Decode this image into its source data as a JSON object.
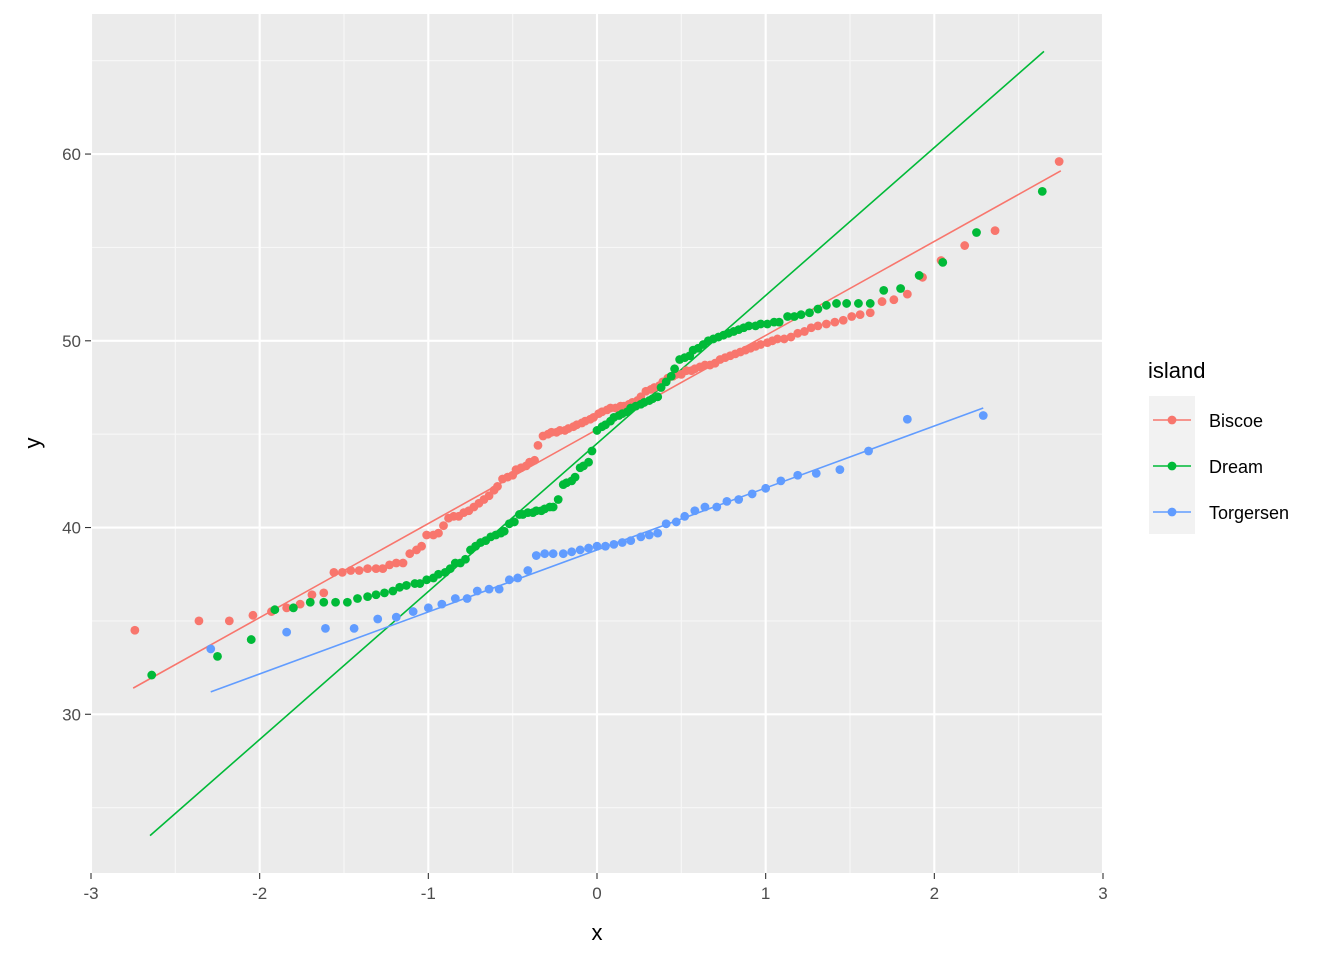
{
  "chart_data": {
    "type": "scatter",
    "title": "",
    "xlabel": "x",
    "ylabel": "y",
    "xlim": [
      -3,
      3
    ],
    "ylim": [
      21.5,
      67.5
    ],
    "x_ticks": [
      -3,
      -2,
      -1,
      0,
      1,
      2,
      3
    ],
    "y_ticks": [
      30,
      40,
      50,
      60
    ],
    "x_tick_labels": [
      "-3",
      "-2",
      "-1",
      "0",
      "1",
      "2",
      "3"
    ],
    "y_tick_labels": [
      "30",
      "40",
      "50",
      "60"
    ],
    "grid": true,
    "legend": {
      "title": "island",
      "position": "right"
    },
    "series": [
      {
        "name": "Biscoe",
        "color": "#F8766D",
        "line": [
          [
            -2.75,
            31.4
          ],
          [
            2.75,
            59.1
          ]
        ],
        "points": [
          [
            -2.74,
            34.5
          ],
          [
            -2.36,
            35.0
          ],
          [
            -2.18,
            35.0
          ],
          [
            -2.04,
            35.3
          ],
          [
            -1.93,
            35.5
          ],
          [
            -1.84,
            35.7
          ],
          [
            -1.76,
            35.9
          ],
          [
            -1.69,
            36.4
          ],
          [
            -1.62,
            36.5
          ],
          [
            -1.56,
            37.6
          ],
          [
            -1.51,
            37.6
          ],
          [
            -1.46,
            37.7
          ],
          [
            -1.41,
            37.7
          ],
          [
            -1.36,
            37.8
          ],
          [
            -1.31,
            37.8
          ],
          [
            -1.27,
            37.8
          ],
          [
            -1.23,
            38.0
          ],
          [
            -1.19,
            38.1
          ],
          [
            -1.15,
            38.1
          ],
          [
            -1.11,
            38.6
          ],
          [
            -1.07,
            38.8
          ],
          [
            -1.04,
            39.0
          ],
          [
            -1.01,
            39.6
          ],
          [
            -0.97,
            39.6
          ],
          [
            -0.94,
            39.7
          ],
          [
            -0.91,
            40.1
          ],
          [
            -0.88,
            40.5
          ],
          [
            -0.85,
            40.6
          ],
          [
            -0.82,
            40.6
          ],
          [
            -0.79,
            40.8
          ],
          [
            -0.76,
            40.9
          ],
          [
            -0.73,
            41.1
          ],
          [
            -0.7,
            41.3
          ],
          [
            -0.67,
            41.5
          ],
          [
            -0.64,
            41.7
          ],
          [
            -0.61,
            42.0
          ],
          [
            -0.59,
            42.2
          ],
          [
            -0.56,
            42.6
          ],
          [
            -0.53,
            42.7
          ],
          [
            -0.5,
            42.8
          ],
          [
            -0.48,
            43.1
          ],
          [
            -0.45,
            43.2
          ],
          [
            -0.42,
            43.3
          ],
          [
            -0.4,
            43.5
          ],
          [
            -0.37,
            43.6
          ],
          [
            -0.35,
            44.4
          ],
          [
            -0.32,
            44.9
          ],
          [
            -0.29,
            45.0
          ],
          [
            -0.27,
            45.1
          ],
          [
            -0.24,
            45.1
          ],
          [
            -0.22,
            45.2
          ],
          [
            -0.19,
            45.2
          ],
          [
            -0.17,
            45.3
          ],
          [
            -0.14,
            45.4
          ],
          [
            -0.12,
            45.5
          ],
          [
            -0.09,
            45.6
          ],
          [
            -0.07,
            45.7
          ],
          [
            -0.04,
            45.8
          ],
          [
            -0.02,
            45.9
          ],
          [
            0.01,
            46.1
          ],
          [
            0.03,
            46.2
          ],
          [
            0.06,
            46.3
          ],
          [
            0.08,
            46.4
          ],
          [
            0.11,
            46.4
          ],
          [
            0.14,
            46.5
          ],
          [
            0.16,
            46.5
          ],
          [
            0.19,
            46.6
          ],
          [
            0.21,
            46.7
          ],
          [
            0.24,
            46.8
          ],
          [
            0.26,
            47.0
          ],
          [
            0.29,
            47.3
          ],
          [
            0.32,
            47.4
          ],
          [
            0.34,
            47.5
          ],
          [
            0.37,
            47.6
          ],
          [
            0.39,
            47.8
          ],
          [
            0.42,
            48.0
          ],
          [
            0.45,
            48.1
          ],
          [
            0.47,
            48.2
          ],
          [
            0.5,
            48.2
          ],
          [
            0.53,
            48.4
          ],
          [
            0.56,
            48.4
          ],
          [
            0.58,
            48.5
          ],
          [
            0.61,
            48.6
          ],
          [
            0.64,
            48.7
          ],
          [
            0.67,
            48.7
          ],
          [
            0.7,
            48.8
          ],
          [
            0.73,
            49.0
          ],
          [
            0.76,
            49.1
          ],
          [
            0.79,
            49.2
          ],
          [
            0.82,
            49.3
          ],
          [
            0.85,
            49.4
          ],
          [
            0.88,
            49.5
          ],
          [
            0.91,
            49.6
          ],
          [
            0.94,
            49.7
          ],
          [
            0.97,
            49.8
          ],
          [
            1.01,
            49.9
          ],
          [
            1.04,
            50.0
          ],
          [
            1.07,
            50.1
          ],
          [
            1.11,
            50.1
          ],
          [
            1.15,
            50.2
          ],
          [
            1.19,
            50.4
          ],
          [
            1.23,
            50.5
          ],
          [
            1.27,
            50.7
          ],
          [
            1.31,
            50.8
          ],
          [
            1.36,
            50.9
          ],
          [
            1.41,
            51.0
          ],
          [
            1.46,
            51.1
          ],
          [
            1.51,
            51.3
          ],
          [
            1.56,
            51.4
          ],
          [
            1.62,
            51.5
          ],
          [
            1.69,
            52.1
          ],
          [
            1.76,
            52.2
          ],
          [
            1.84,
            52.5
          ],
          [
            1.93,
            53.4
          ],
          [
            2.04,
            54.3
          ],
          [
            2.18,
            55.1
          ],
          [
            2.36,
            55.9
          ],
          [
            2.74,
            59.6
          ]
        ]
      },
      {
        "name": "Dream",
        "color": "#00BA38",
        "line": [
          [
            -2.65,
            23.5
          ],
          [
            2.65,
            65.5
          ]
        ],
        "points": [
          [
            -2.64,
            32.1
          ],
          [
            -2.25,
            33.1
          ],
          [
            -2.05,
            34.0
          ],
          [
            -1.91,
            35.6
          ],
          [
            -1.8,
            35.7
          ],
          [
            -1.7,
            36.0
          ],
          [
            -1.62,
            36.0
          ],
          [
            -1.55,
            36.0
          ],
          [
            -1.48,
            36.0
          ],
          [
            -1.42,
            36.2
          ],
          [
            -1.36,
            36.3
          ],
          [
            -1.31,
            36.4
          ],
          [
            -1.26,
            36.5
          ],
          [
            -1.21,
            36.6
          ],
          [
            -1.17,
            36.8
          ],
          [
            -1.13,
            36.9
          ],
          [
            -1.08,
            37.0
          ],
          [
            -1.05,
            37.0
          ],
          [
            -1.01,
            37.2
          ],
          [
            -0.97,
            37.3
          ],
          [
            -0.94,
            37.5
          ],
          [
            -0.9,
            37.6
          ],
          [
            -0.87,
            37.8
          ],
          [
            -0.84,
            38.1
          ],
          [
            -0.81,
            38.1
          ],
          [
            -0.78,
            38.3
          ],
          [
            -0.75,
            38.8
          ],
          [
            -0.72,
            39.0
          ],
          [
            -0.69,
            39.2
          ],
          [
            -0.66,
            39.3
          ],
          [
            -0.63,
            39.5
          ],
          [
            -0.6,
            39.6
          ],
          [
            -0.57,
            39.7
          ],
          [
            -0.55,
            39.8
          ],
          [
            -0.52,
            40.2
          ],
          [
            -0.49,
            40.3
          ],
          [
            -0.46,
            40.7
          ],
          [
            -0.44,
            40.7
          ],
          [
            -0.41,
            40.8
          ],
          [
            -0.38,
            40.8
          ],
          [
            -0.36,
            40.9
          ],
          [
            -0.33,
            40.9
          ],
          [
            -0.31,
            41.0
          ],
          [
            -0.28,
            41.1
          ],
          [
            -0.26,
            41.1
          ],
          [
            -0.23,
            41.5
          ],
          [
            -0.2,
            42.3
          ],
          [
            -0.18,
            42.4
          ],
          [
            -0.15,
            42.5
          ],
          [
            -0.13,
            42.7
          ],
          [
            -0.1,
            43.2
          ],
          [
            -0.08,
            43.3
          ],
          [
            -0.05,
            43.5
          ],
          [
            -0.03,
            44.1
          ],
          [
            0.0,
            45.2
          ],
          [
            0.03,
            45.4
          ],
          [
            0.05,
            45.5
          ],
          [
            0.08,
            45.7
          ],
          [
            0.1,
            45.9
          ],
          [
            0.13,
            46.0
          ],
          [
            0.15,
            46.1
          ],
          [
            0.18,
            46.2
          ],
          [
            0.2,
            46.4
          ],
          [
            0.23,
            46.5
          ],
          [
            0.26,
            46.6
          ],
          [
            0.28,
            46.7
          ],
          [
            0.31,
            46.8
          ],
          [
            0.33,
            46.9
          ],
          [
            0.36,
            47.0
          ],
          [
            0.38,
            47.5
          ],
          [
            0.41,
            47.8
          ],
          [
            0.44,
            48.1
          ],
          [
            0.46,
            48.5
          ],
          [
            0.49,
            49.0
          ],
          [
            0.52,
            49.1
          ],
          [
            0.55,
            49.2
          ],
          [
            0.57,
            49.5
          ],
          [
            0.6,
            49.6
          ],
          [
            0.63,
            49.8
          ],
          [
            0.66,
            50.0
          ],
          [
            0.69,
            50.1
          ],
          [
            0.72,
            50.2
          ],
          [
            0.75,
            50.3
          ],
          [
            0.78,
            50.4
          ],
          [
            0.81,
            50.5
          ],
          [
            0.84,
            50.6
          ],
          [
            0.87,
            50.7
          ],
          [
            0.9,
            50.8
          ],
          [
            0.94,
            50.8
          ],
          [
            0.97,
            50.9
          ],
          [
            1.01,
            50.9
          ],
          [
            1.05,
            51.0
          ],
          [
            1.08,
            51.0
          ],
          [
            1.13,
            51.3
          ],
          [
            1.17,
            51.3
          ],
          [
            1.21,
            51.4
          ],
          [
            1.26,
            51.5
          ],
          [
            1.31,
            51.7
          ],
          [
            1.36,
            51.9
          ],
          [
            1.42,
            52.0
          ],
          [
            1.48,
            52.0
          ],
          [
            1.55,
            52.0
          ],
          [
            1.62,
            52.0
          ],
          [
            1.7,
            52.7
          ],
          [
            1.8,
            52.8
          ],
          [
            1.91,
            53.5
          ],
          [
            2.05,
            54.2
          ],
          [
            2.25,
            55.8
          ],
          [
            2.64,
            58.0
          ]
        ]
      },
      {
        "name": "Torgersen",
        "color": "#619CFF",
        "line": [
          [
            -2.29,
            31.2
          ],
          [
            2.29,
            46.4
          ]
        ],
        "points": [
          [
            -2.29,
            33.5
          ],
          [
            -1.84,
            34.4
          ],
          [
            -1.61,
            34.6
          ],
          [
            -1.44,
            34.6
          ],
          [
            -1.3,
            35.1
          ],
          [
            -1.19,
            35.2
          ],
          [
            -1.09,
            35.5
          ],
          [
            -1.0,
            35.7
          ],
          [
            -0.92,
            35.9
          ],
          [
            -0.84,
            36.2
          ],
          [
            -0.77,
            36.2
          ],
          [
            -0.71,
            36.6
          ],
          [
            -0.64,
            36.7
          ],
          [
            -0.58,
            36.7
          ],
          [
            -0.52,
            37.2
          ],
          [
            -0.47,
            37.3
          ],
          [
            -0.41,
            37.7
          ],
          [
            -0.36,
            38.5
          ],
          [
            -0.31,
            38.6
          ],
          [
            -0.26,
            38.6
          ],
          [
            -0.2,
            38.6
          ],
          [
            -0.15,
            38.7
          ],
          [
            -0.1,
            38.8
          ],
          [
            -0.05,
            38.9
          ],
          [
            0.0,
            39.0
          ],
          [
            0.05,
            39.0
          ],
          [
            0.1,
            39.1
          ],
          [
            0.15,
            39.2
          ],
          [
            0.2,
            39.3
          ],
          [
            0.26,
            39.5
          ],
          [
            0.31,
            39.6
          ],
          [
            0.36,
            39.7
          ],
          [
            0.41,
            40.2
          ],
          [
            0.47,
            40.3
          ],
          [
            0.52,
            40.6
          ],
          [
            0.58,
            40.9
          ],
          [
            0.64,
            41.1
          ],
          [
            0.71,
            41.1
          ],
          [
            0.77,
            41.4
          ],
          [
            0.84,
            41.5
          ],
          [
            0.92,
            41.8
          ],
          [
            1.0,
            42.1
          ],
          [
            1.09,
            42.5
          ],
          [
            1.19,
            42.8
          ],
          [
            1.3,
            42.9
          ],
          [
            1.44,
            43.1
          ],
          [
            1.61,
            44.1
          ],
          [
            1.84,
            45.8
          ],
          [
            2.29,
            46.0
          ]
        ]
      }
    ]
  }
}
